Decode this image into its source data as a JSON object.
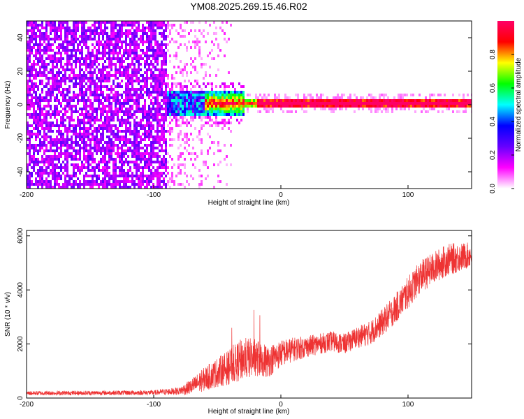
{
  "title": "YM08.2025.269.15.46.R02",
  "chart_data": [
    {
      "type": "heatmap",
      "title": "YM08.2025.269.15.46.R02",
      "xlabel": "Height of straight line (km)",
      "ylabel": "Frequency (Hz)",
      "xlim": [
        -200,
        150
      ],
      "ylim": [
        -50,
        50
      ],
      "xticks": [
        -200,
        -100,
        0,
        100
      ],
      "yticks": [
        -40,
        -20,
        0,
        20,
        40
      ],
      "colorbar": {
        "label": "Normalized spectral amplitude",
        "range": [
          0,
          1
        ],
        "ticks": [
          "0.0",
          "0.2",
          "0.4",
          "0.6",
          "0.8"
        ],
        "tick_values": [
          0.0,
          0.2,
          0.4,
          0.6,
          0.8
        ],
        "colors": [
          "#ffffff",
          "#ff00ff",
          "#6600ff",
          "#0000ff",
          "#00ffff",
          "#00ff00",
          "#ffff00",
          "#ff0000",
          "#ff0066"
        ]
      },
      "features": {
        "noise_region_x": [
          -200,
          -90
        ],
        "noise_fade_x": [
          -90,
          -30
        ],
        "signal_band_center_hz": 0,
        "signal_band_halfwidth_hz": 3,
        "signal_start_x": -90
      }
    },
    {
      "type": "line",
      "xlabel": "Height of straight line (km)",
      "ylabel": "SNR (10 * v/v)",
      "xlim": [
        -200,
        150
      ],
      "ylim": [
        0,
        6200
      ],
      "xticks": [
        -200,
        -100,
        0,
        100
      ],
      "yticks": [
        0,
        2000,
        4000,
        6000
      ],
      "color": "#ee3333",
      "series": [
        {
          "x": [
            -200,
            -150,
            -100,
            -80,
            -70,
            -60,
            -50,
            -40,
            -30,
            -20,
            -10,
            0,
            10,
            20,
            30,
            40,
            50,
            60,
            70,
            80,
            90,
            100,
            110,
            120,
            130,
            140,
            150
          ],
          "values": [
            180,
            190,
            200,
            260,
            420,
            700,
            950,
            1150,
            1450,
            1500,
            1350,
            1650,
            1800,
            1900,
            2000,
            2100,
            2000,
            2250,
            2400,
            2800,
            3300,
            3900,
            4500,
            4800,
            5100,
            5200,
            5300
          ],
          "spread": [
            80,
            80,
            90,
            140,
            300,
            450,
            550,
            650,
            800,
            700,
            600,
            500,
            450,
            400,
            380,
            380,
            380,
            400,
            450,
            500,
            550,
            600,
            600,
            600,
            600,
            550,
            450
          ]
        }
      ]
    }
  ]
}
